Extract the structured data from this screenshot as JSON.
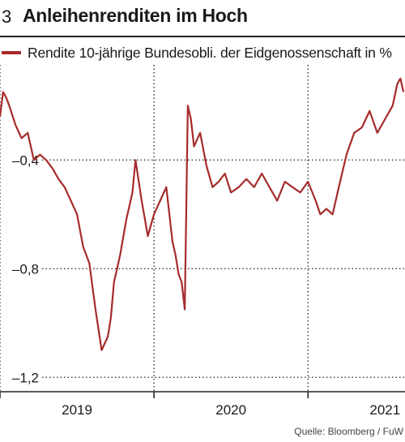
{
  "header": {
    "number": "3",
    "title": "Anleihenrenditen im Hoch"
  },
  "source": "Quelle: Bloomberg / FuW",
  "colors": {
    "series": "#a62b2b",
    "grid": "#222222"
  },
  "chart_data": {
    "type": "line",
    "title": "Anleihenrenditen im Hoch",
    "ylim": [
      -1.25,
      -0.05
    ],
    "yticks": [
      -0.4,
      -0.8,
      -1.2
    ],
    "ytick_labels": [
      "–0,4",
      "–0,8",
      "–1,2"
    ],
    "xlim": [
      2018.5,
      2021.13
    ],
    "xticks": [
      2019,
      2020,
      2021
    ],
    "xtick_labels": [
      "2019",
      "2020",
      "2021"
    ],
    "grid": "dotted",
    "legend": "top-left",
    "series": [
      {
        "name": "Rendite 10-jährige Bundesobli. der Eidgenossenschaft in %",
        "x": [
          2018.5,
          2018.52,
          2018.54,
          2018.56,
          2018.6,
          2018.64,
          2018.68,
          2018.72,
          2018.76,
          2018.8,
          2018.84,
          2018.88,
          2018.92,
          2018.96,
          2019.0,
          2019.04,
          2019.08,
          2019.12,
          2019.16,
          2019.2,
          2019.22,
          2019.24,
          2019.28,
          2019.32,
          2019.36,
          2019.38,
          2019.42,
          2019.46,
          2019.5,
          2019.54,
          2019.58,
          2019.62,
          2019.64,
          2019.66,
          2019.68,
          2019.7,
          2019.72,
          2019.74,
          2019.76,
          2019.8,
          2019.84,
          2019.88,
          2019.92,
          2019.96,
          2020.0,
          2020.05,
          2020.1,
          2020.15,
          2020.2,
          2020.25,
          2020.3,
          2020.35,
          2020.4,
          2020.45,
          2020.5,
          2020.55,
          2020.58,
          2020.62,
          2020.66,
          2020.7,
          2020.75,
          2020.8,
          2020.85,
          2020.9,
          2020.95,
          2021.0,
          2021.05,
          2021.08,
          2021.1,
          2021.12
        ],
        "values": [
          -0.24,
          -0.15,
          -0.17,
          -0.2,
          -0.27,
          -0.32,
          -0.3,
          -0.4,
          -0.38,
          -0.4,
          -0.43,
          -0.47,
          -0.5,
          -0.55,
          -0.6,
          -0.72,
          -0.78,
          -0.95,
          -1.1,
          -1.05,
          -0.98,
          -0.85,
          -0.75,
          -0.62,
          -0.52,
          -0.4,
          -0.55,
          -0.68,
          -0.6,
          -0.55,
          -0.5,
          -0.7,
          -0.75,
          -0.82,
          -0.85,
          -0.95,
          -0.2,
          -0.25,
          -0.35,
          -0.3,
          -0.42,
          -0.5,
          -0.48,
          -0.45,
          -0.52,
          -0.5,
          -0.47,
          -0.5,
          -0.45,
          -0.5,
          -0.55,
          -0.48,
          -0.5,
          -0.52,
          -0.48,
          -0.55,
          -0.6,
          -0.58,
          -0.6,
          -0.5,
          -0.38,
          -0.3,
          -0.28,
          -0.22,
          -0.3,
          -0.25,
          -0.2,
          -0.12,
          -0.1,
          -0.15
        ]
      }
    ]
  }
}
